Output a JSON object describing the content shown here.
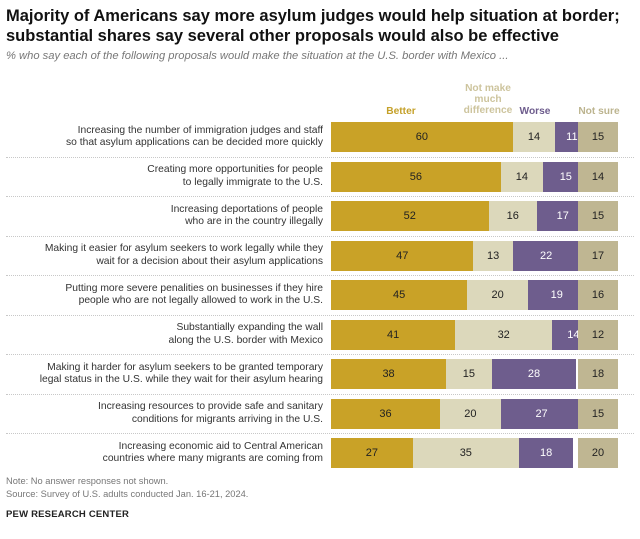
{
  "title": "Majority of Americans say more asylum judges would help situation at border; substantial shares say several other proposals would also be effective",
  "subtitle": "% who say each of the following proposals would make the situation at the U.S. border with Mexico ...",
  "colors": {
    "better": "#c9a227",
    "no_difference": "#dcd8bb",
    "worse": "#6e5d8d",
    "not_sure": "#bfb692"
  },
  "chart_data": {
    "type": "bar",
    "stacked": true,
    "title": "Majority of Americans say more asylum judges would help situation at border; substantial shares say several other proposals would also be effective",
    "series": [
      {
        "name": "Better",
        "values": [
          60,
          56,
          52,
          47,
          45,
          41,
          38,
          36,
          27
        ]
      },
      {
        "name": "Not make much difference",
        "values": [
          14,
          14,
          16,
          13,
          20,
          32,
          15,
          20,
          35
        ]
      },
      {
        "name": "Worse",
        "values": [
          11,
          15,
          17,
          22,
          19,
          14,
          28,
          27,
          18
        ]
      },
      {
        "name": "Not sure",
        "values": [
          15,
          14,
          15,
          17,
          16,
          12,
          18,
          15,
          20
        ]
      }
    ],
    "legend_labels": {
      "better": "Better",
      "no_difference_lines": [
        "Not make",
        "much",
        "difference"
      ],
      "worse": "Worse",
      "not_sure": "Not sure"
    },
    "categories": [
      {
        "lines": [
          "Increasing the number of immigration judges and staff",
          "so that asylum applications can be decided more quickly"
        ]
      },
      {
        "lines": [
          "Creating more opportunities for people",
          "to legally immigrate to the U.S."
        ]
      },
      {
        "lines": [
          "Increasing deportations of people",
          "who are in the country illegally"
        ]
      },
      {
        "lines": [
          "Making it easier for asylum seekers to work legally while they",
          "wait for a decision about their asylum applications"
        ]
      },
      {
        "lines": [
          "Putting more severe penalities on businesses if they hire",
          "people who are not legally allowed to work in the U.S."
        ]
      },
      {
        "lines": [
          "Substantially expanding the wall",
          "along the U.S. border with Mexico"
        ]
      },
      {
        "lines": [
          "Making it harder for asylum seekers to be granted temporary",
          "legal status in the U.S. while they wait for their asylum hearing"
        ]
      },
      {
        "lines": [
          "Increasing resources to provide safe and sanitary",
          "conditions for migrants arriving in the U.S."
        ]
      },
      {
        "lines": [
          "Increasing economic aid to Central American",
          "countries where many migrants are coming from"
        ]
      }
    ]
  },
  "notes": {
    "note": "Note: No answer responses not shown.",
    "source": "Source: Survey of U.S. adults conducted Jan. 16-21, 2024.",
    "org": "PEW RESEARCH CENTER"
  }
}
